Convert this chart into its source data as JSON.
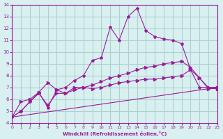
{
  "bg_color": "#d8f0f0",
  "grid_color": "#b0d0d0",
  "line_color": "#9b1b9b",
  "xlabel": "Windchill (Refroidissement éolien,°C)",
  "ylabel": "",
  "xlim": [
    0,
    23
  ],
  "ylim": [
    4,
    14
  ],
  "xticks": [
    0,
    1,
    2,
    3,
    4,
    5,
    6,
    7,
    8,
    9,
    10,
    11,
    12,
    13,
    14,
    15,
    16,
    17,
    18,
    19,
    20,
    21,
    22,
    23
  ],
  "yticks": [
    4,
    5,
    6,
    7,
    8,
    9,
    10,
    11,
    12,
    13,
    14
  ],
  "series": [
    {
      "x": [
        0,
        1,
        2,
        3,
        4,
        5,
        6,
        7,
        8,
        9,
        10,
        11,
        12,
        13,
        14,
        15,
        16,
        17,
        18,
        19,
        20,
        21,
        22,
        23
      ],
      "y": [
        4.5,
        5.0,
        5.8,
        6.6,
        5.3,
        6.8,
        7.0,
        7.6,
        8.0,
        9.3,
        9.5,
        12.1,
        11.0,
        13.0,
        13.7,
        11.8,
        11.3,
        11.1,
        11.0,
        10.7,
        8.5,
        7.0,
        7.0,
        7.0
      ],
      "marker": "*"
    },
    {
      "x": [
        0,
        1,
        2,
        3,
        4,
        5,
        6,
        7,
        8,
        9,
        10,
        11,
        12,
        13,
        14,
        15,
        16,
        17,
        18,
        19,
        20,
        21,
        22,
        23
      ],
      "y": [
        4.5,
        5.8,
        6.0,
        6.6,
        7.4,
        6.8,
        6.5,
        7.0,
        7.0,
        6.9,
        7.0,
        7.2,
        7.4,
        7.5,
        7.6,
        7.7,
        7.7,
        7.8,
        7.9,
        8.0,
        8.5,
        7.8,
        7.0,
        7.0
      ],
      "marker": ">"
    },
    {
      "x": [
        0,
        1,
        2,
        3,
        4,
        5,
        6,
        7,
        8,
        9,
        10,
        11,
        12,
        13,
        14,
        15,
        16,
        17,
        18,
        19,
        20,
        21,
        22,
        23
      ],
      "y": [
        4.5,
        5.0,
        5.8,
        6.5,
        5.5,
        6.5,
        6.5,
        6.8,
        7.0,
        7.2,
        7.5,
        7.8,
        8.0,
        8.2,
        8.5,
        8.7,
        8.8,
        9.0,
        9.1,
        9.2,
        8.7,
        7.8,
        6.9,
        6.9
      ],
      "marker": ">"
    },
    {
      "x": [
        0,
        23
      ],
      "y": [
        4.5,
        7.0
      ],
      "marker": "none"
    }
  ]
}
